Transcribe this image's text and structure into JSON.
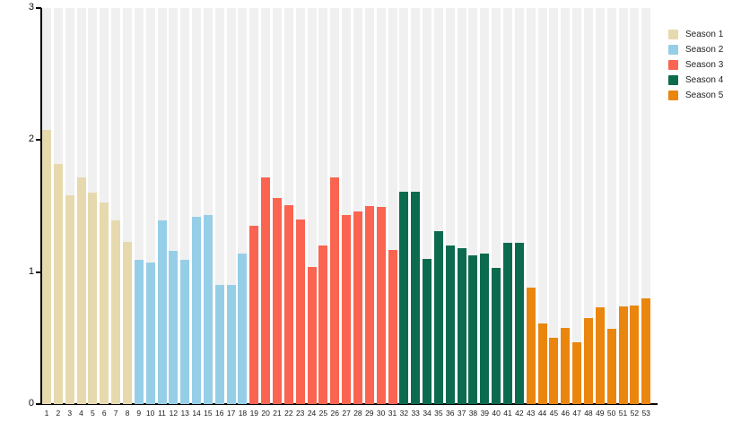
{
  "chart_data": {
    "type": "bar",
    "title": "",
    "xlabel": "",
    "ylabel": "",
    "ylim": [
      0,
      3
    ],
    "yticks": [
      0,
      1,
      2,
      3
    ],
    "grid": "light-gray full-height column stripe behind each bar",
    "legend_position": "top-right",
    "legend": [
      "Season 1",
      "Season 2",
      "Season 3",
      "Season 4",
      "Season 5"
    ],
    "axis_color": "#000000",
    "stripe_color": "#f0f0f0",
    "series": [
      {
        "name": "Season 1",
        "color": "#e6d9ae",
        "episodes": [
          1,
          2,
          3,
          4,
          5,
          6,
          7,
          8
        ],
        "values": [
          2.08,
          1.82,
          1.58,
          1.72,
          1.6,
          1.53,
          1.39,
          1.23
        ]
      },
      {
        "name": "Season 2",
        "color": "#97cee7",
        "episodes": [
          9,
          10,
          11,
          12,
          13,
          14,
          15,
          16,
          17,
          18
        ],
        "values": [
          1.09,
          1.07,
          1.39,
          1.16,
          1.09,
          1.42,
          1.43,
          0.9,
          0.9,
          1.14
        ]
      },
      {
        "name": "Season 3",
        "color": "#fa6450",
        "episodes": [
          19,
          20,
          21,
          22,
          23,
          24,
          25,
          26,
          27,
          28,
          29,
          30,
          31
        ],
        "values": [
          1.35,
          1.72,
          1.56,
          1.51,
          1.4,
          1.04,
          1.2,
          1.72,
          1.43,
          1.46,
          1.5,
          1.49,
          1.17
        ]
      },
      {
        "name": "Season 4",
        "color": "#0c6b4f",
        "episodes": [
          32,
          33,
          34,
          35,
          36,
          37,
          38,
          39,
          40,
          41,
          42
        ],
        "values": [
          1.61,
          1.61,
          1.1,
          1.31,
          1.2,
          1.18,
          1.13,
          1.14,
          1.03,
          1.22,
          1.22
        ]
      },
      {
        "name": "Season 5",
        "color": "#ea860e",
        "episodes": [
          43,
          44,
          45,
          46,
          47,
          48,
          49,
          50,
          51,
          52,
          53
        ],
        "values": [
          0.88,
          0.61,
          0.5,
          0.58,
          0.47,
          0.65,
          0.73,
          0.57,
          0.74,
          0.75,
          0.8
        ]
      }
    ]
  }
}
